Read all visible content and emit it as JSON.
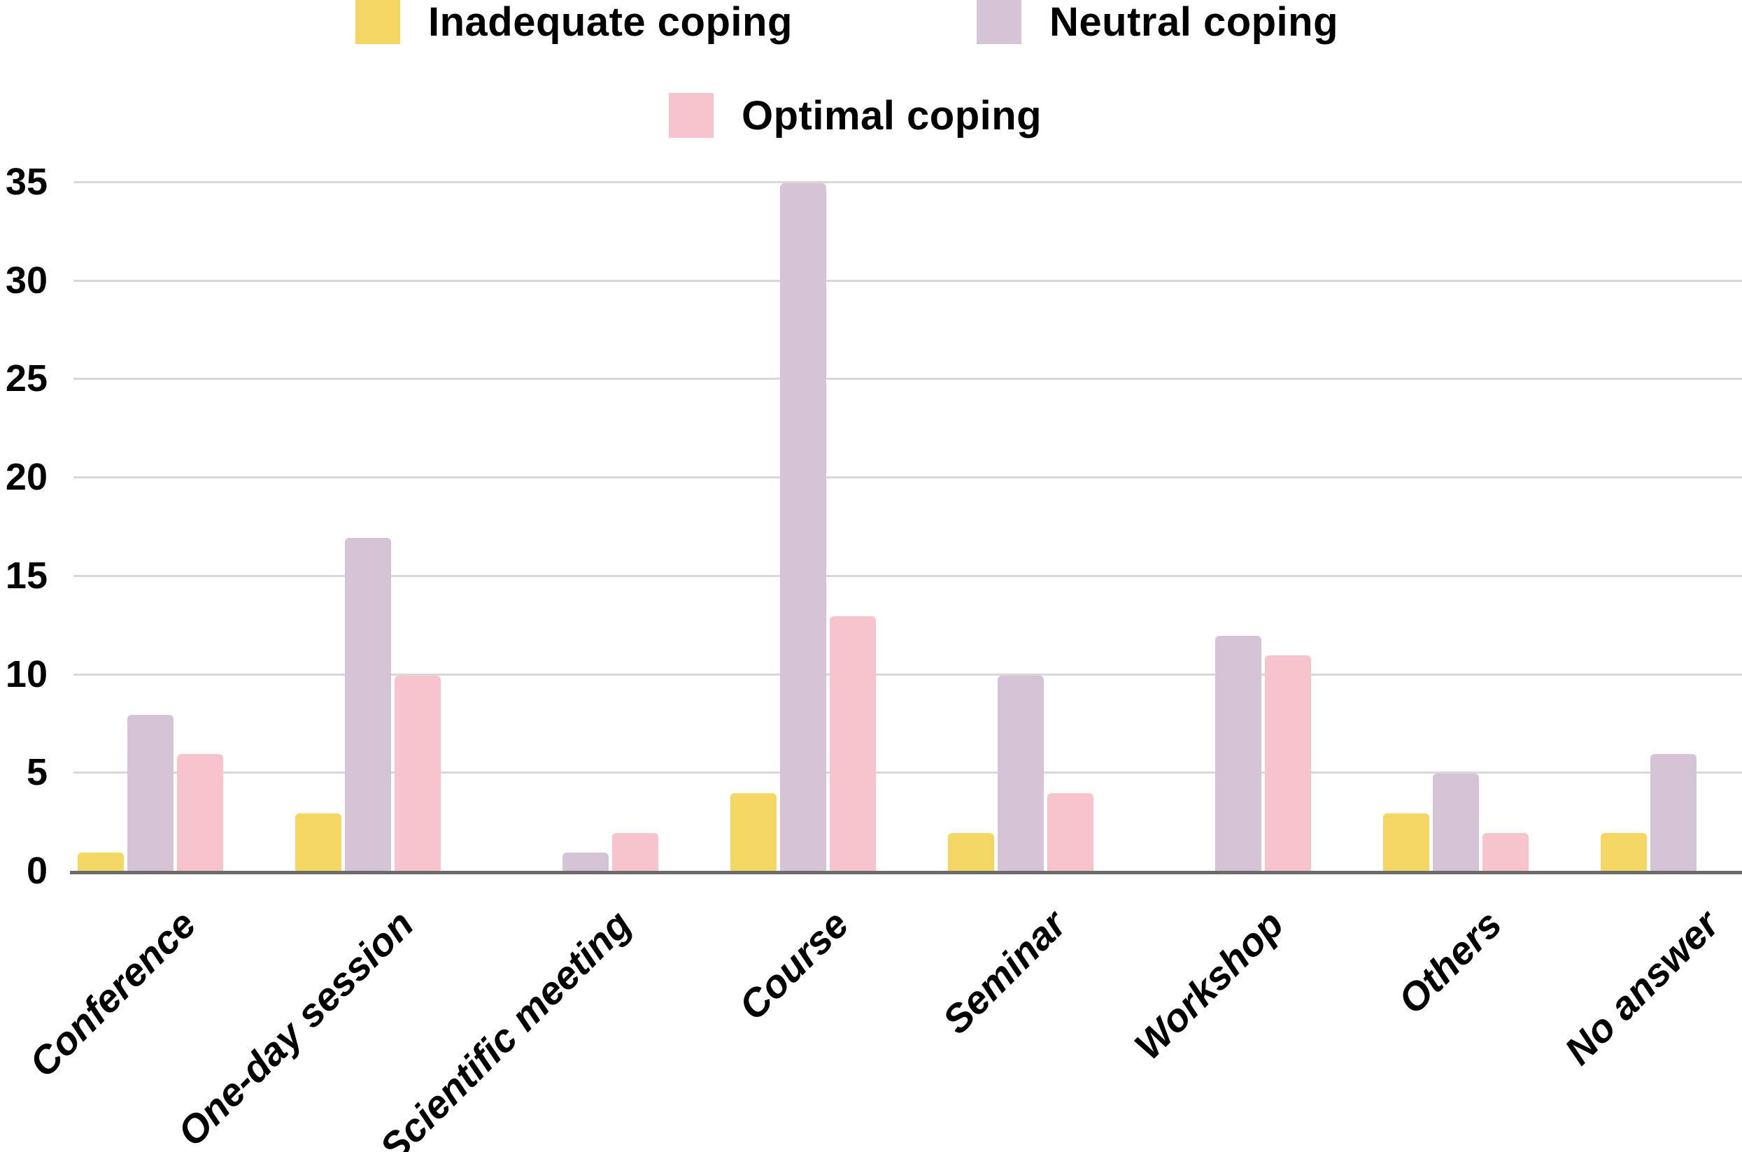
{
  "chart_data": {
    "type": "bar",
    "title": "",
    "categories": [
      "Conference",
      "One-day session",
      "Scientific meeting",
      "Course",
      "Seminar",
      "Workshop",
      "Others",
      "No answer"
    ],
    "series": [
      {
        "name": "Inadequate coping",
        "color": "#f3d762",
        "values": [
          1,
          3,
          0,
          4,
          2,
          0,
          3,
          2
        ]
      },
      {
        "name": "Neutral coping",
        "color": "#d4c4d6",
        "values": [
          8,
          17,
          1,
          35,
          10,
          12,
          5,
          6
        ]
      },
      {
        "name": "Optimal coping",
        "color": "#f7c4ce",
        "values": [
          6,
          10,
          2,
          13,
          4,
          11,
          2,
          0
        ]
      }
    ],
    "xlabel": "",
    "ylabel": "",
    "ylim": [
      0,
      35
    ],
    "yticks": [
      0,
      5,
      10,
      15,
      20,
      25,
      30,
      35
    ],
    "grid": "horizontal",
    "legend_position": "top",
    "colors": {
      "gridline": "#d8d8d8",
      "baseline": "#6b6b6b",
      "text": "#000000",
      "background": "#ffffff"
    }
  }
}
